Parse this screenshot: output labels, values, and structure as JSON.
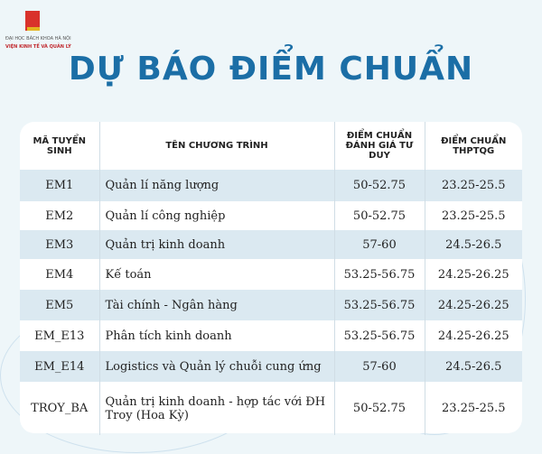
{
  "header": {
    "university": "ĐẠI HỌC BÁCH KHOA HÀ NỘI",
    "institute": "VIỆN KINH TẾ VÀ QUẢN LÝ",
    "title": "DỰ BÁO ĐIỂM CHUẨN"
  },
  "table": {
    "columns": [
      "MÃ TUYỂN SINH",
      "TÊN CHƯƠNG TRÌNH",
      "ĐIỂM CHUẨN ĐÁNH GIÁ TƯ DUY",
      "ĐIỂM CHUẨN THPTQG"
    ],
    "rows": [
      [
        "EM1",
        "Quản lí năng lượng",
        "50-52.75",
        "23.25-25.5"
      ],
      [
        "EM2",
        "Quản lí công nghiệp",
        "50-52.75",
        "23.25-25.5"
      ],
      [
        "EM3",
        "Quản trị kinh doanh",
        "57-60",
        "24.5-26.5"
      ],
      [
        "EM4",
        "Kế toán",
        "53.25-56.75",
        "24.25-26.25"
      ],
      [
        "EM5",
        "Tài chính - Ngân hàng",
        "53.25-56.75",
        "24.25-26.25"
      ],
      [
        "EM_E13",
        "Phân tích kinh doanh",
        "53.25-56.75",
        "24.25-26.25"
      ],
      [
        "EM_E14",
        "Logistics và Quản lý chuỗi cung ứng",
        "57-60",
        "24.5-26.5"
      ],
      [
        "TROY_BA",
        "Quản trị kinh doanh - hợp tác với ĐH Troy (Hoa Kỳ)",
        "50-52.75",
        "23.25-25.5"
      ]
    ]
  }
}
